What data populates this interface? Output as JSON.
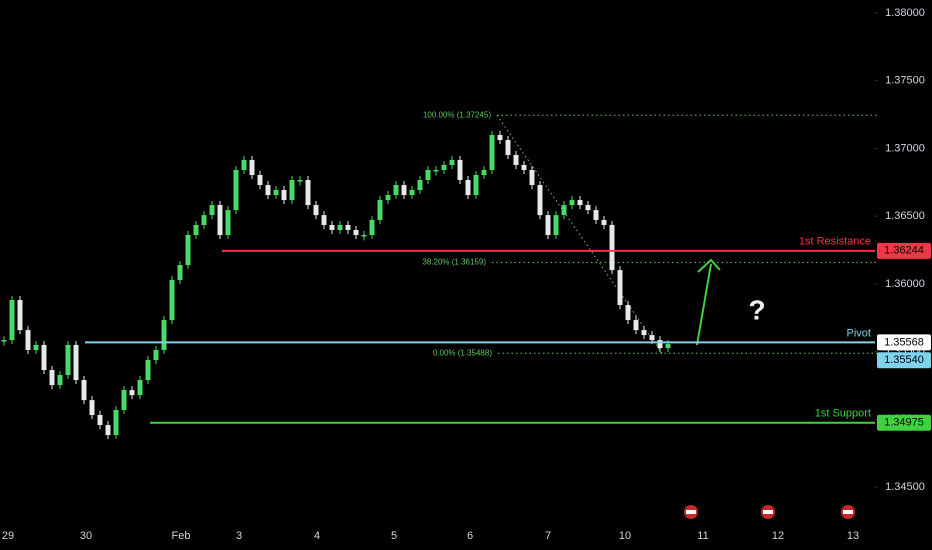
{
  "chart_data": {
    "type": "candlestick",
    "values": [
      1.35585,
      1.35881,
      1.35659,
      1.35512,
      1.35549,
      1.35364,
      1.35253,
      1.35327,
      1.35549,
      1.3529,
      1.35142,
      1.35032,
      1.34958,
      1.34884,
      1.35069,
      1.35216,
      1.35179,
      1.3529,
      1.35438,
      1.35512,
      1.35733,
      1.36029,
      1.36139,
      1.36361,
      1.36435,
      1.36508,
      1.36582,
      1.36361,
      1.36545,
      1.36841,
      1.36915,
      1.36804,
      1.3673,
      1.36656,
      1.36693,
      1.36619,
      1.36767,
      1.36767,
      1.36582,
      1.36508,
      1.36435,
      1.36398,
      1.36435,
      1.36398,
      1.36361,
      1.36361,
      1.36472,
      1.36619,
      1.36656,
      1.3673,
      1.36656,
      1.36693,
      1.36767,
      1.36841,
      1.36841,
      1.36878,
      1.36915,
      1.36767,
      1.36656,
      1.36804,
      1.36841,
      1.37099,
      1.37062,
      1.36952,
      1.36878,
      1.36841,
      1.3673,
      1.36508,
      1.36361,
      1.36508,
      1.36582,
      1.36619,
      1.36582,
      1.36545,
      1.36472,
      1.36435,
      1.36102,
      1.35844,
      1.35733,
      1.35659,
      1.35622,
      1.35585,
      1.35526,
      1.35556
    ],
    "up_color": "#4cd964",
    "down_color": "#e8e8e8",
    "ylim": [
      1.34242,
      1.38096
    ],
    "yticks": [
      {
        "value": 1.345,
        "label": "1.34500"
      },
      {
        "value": 1.35,
        "label": "1.35000"
      },
      {
        "value": 1.355,
        "label": "1.35500"
      },
      {
        "value": 1.36,
        "label": "1.36000"
      },
      {
        "value": 1.365,
        "label": "1.36500"
      },
      {
        "value": 1.37,
        "label": "1.37000"
      },
      {
        "value": 1.375,
        "label": "1.37500"
      },
      {
        "value": 1.38,
        "label": "1.38000"
      }
    ],
    "x_labels": [
      "29",
      "30",
      "Feb",
      "3",
      "4",
      "5",
      "6",
      "7",
      "10",
      "11",
      "12",
      "13"
    ],
    "levels": [
      {
        "name": "1st Resistance",
        "value": 1.36244,
        "color": "#f23645"
      },
      {
        "name": "Pivot",
        "value": 1.35568,
        "color": "#7fd3ec"
      },
      {
        "name": "1st Support",
        "value": 1.34975,
        "color": "#3fd13f"
      }
    ],
    "current_price": {
      "value": 1.3554,
      "label": "1.35540",
      "color": "#7fd3ec"
    },
    "fib_levels": [
      {
        "label": "100.00% (1.37245)",
        "value": 1.37245
      },
      {
        "label": "38.20% (1.36159)",
        "value": 1.36159
      },
      {
        "label": "0.00% (1.35488)",
        "value": 1.35488
      }
    ],
    "fib_color": "#5fc85f",
    "annotation": "?"
  }
}
